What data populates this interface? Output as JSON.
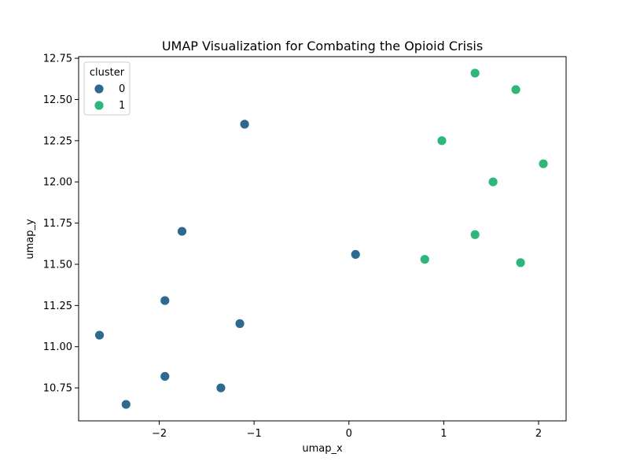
{
  "chart_data": {
    "type": "scatter",
    "title": "UMAP Visualization for Combating the Opioid Crisis",
    "xlabel": "umap_x",
    "ylabel": "umap_y",
    "xlim": [
      -2.85,
      2.29
    ],
    "ylim": [
      10.55,
      12.76
    ],
    "x_ticks": [
      -2,
      -1,
      0,
      1,
      2
    ],
    "x_tick_labels": [
      "−2",
      "−1",
      "0",
      "1",
      "2"
    ],
    "y_ticks": [
      10.75,
      11.0,
      11.25,
      11.5,
      11.75,
      12.0,
      12.25,
      12.5,
      12.75
    ],
    "y_tick_labels": [
      "10.75",
      "11.00",
      "11.25",
      "11.50",
      "11.75",
      "12.00",
      "12.25",
      "12.50",
      "12.75"
    ],
    "grid": false,
    "legend": {
      "title": "cluster",
      "placement": "top-left"
    },
    "series": [
      {
        "name": "0",
        "color": "#2e6a8f",
        "points": [
          [
            -1.1,
            12.35
          ],
          [
            -1.76,
            11.7
          ],
          [
            0.07,
            11.56
          ],
          [
            -1.94,
            11.28
          ],
          [
            -1.15,
            11.14
          ],
          [
            -2.63,
            11.07
          ],
          [
            -1.94,
            10.82
          ],
          [
            -1.35,
            10.75
          ],
          [
            -2.35,
            10.65
          ]
        ]
      },
      {
        "name": "1",
        "color": "#2fb67a",
        "points": [
          [
            1.33,
            12.66
          ],
          [
            1.76,
            12.56
          ],
          [
            0.98,
            12.25
          ],
          [
            2.05,
            12.11
          ],
          [
            1.52,
            12.0
          ],
          [
            1.33,
            11.68
          ],
          [
            0.8,
            11.53
          ],
          [
            1.81,
            11.51
          ]
        ]
      }
    ]
  }
}
